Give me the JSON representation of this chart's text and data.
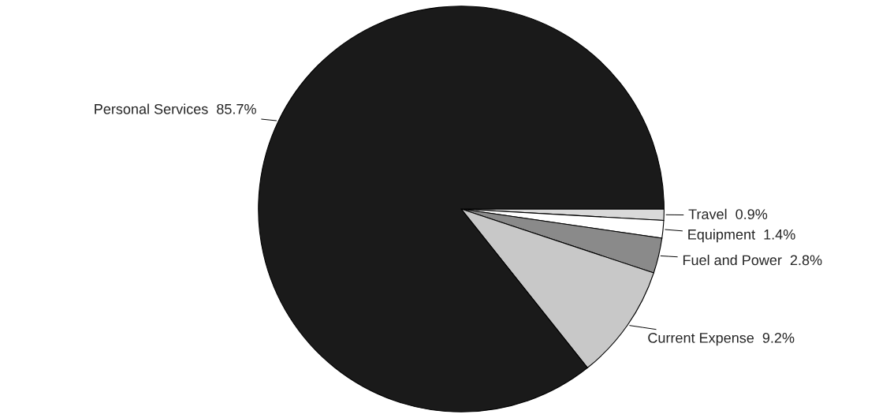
{
  "chart_data": {
    "type": "pie",
    "categories": [
      "Travel",
      "Equipment",
      "Fuel and Power",
      "Current Expense",
      "Personal Services"
    ],
    "values": [
      0.9,
      1.4,
      2.8,
      9.2,
      85.7
    ],
    "value_labels": [
      "0.9%",
      "1.4%",
      "2.8%",
      "9.2%",
      "85.7%"
    ],
    "colors": [
      "#d9d9d9",
      "#ffffff",
      "#8a8a8a",
      "#c8c8c8",
      "#1a1a1a"
    ],
    "legend": false
  }
}
